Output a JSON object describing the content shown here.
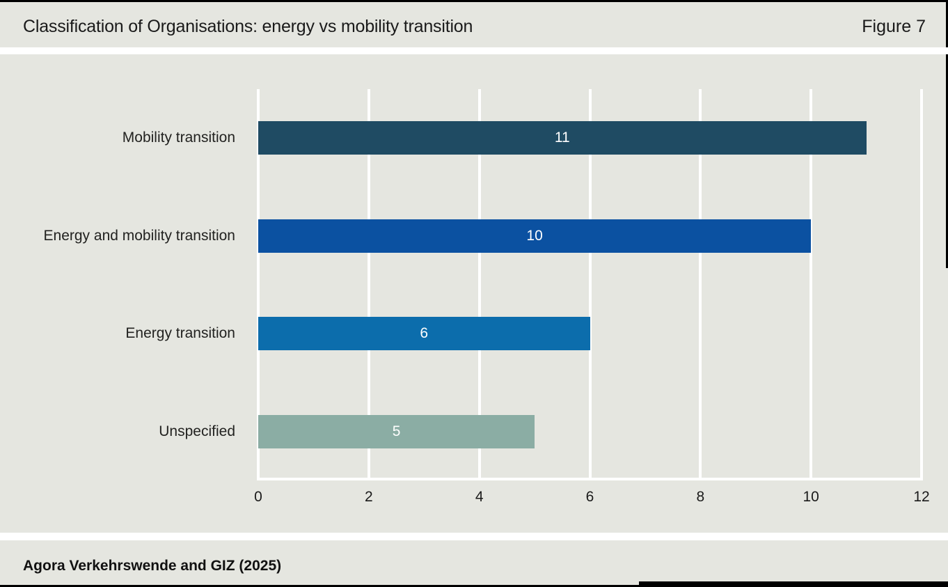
{
  "header": {
    "title": "Classification of Organisations: energy vs mobility transition",
    "figure_label": "Figure 7"
  },
  "footer": {
    "source": "Agora Verkehrswende and GIZ (2025)"
  },
  "colors": {
    "background": "#e5e6e0",
    "grid": "#ffffff",
    "text": "#1a1a1a",
    "value_label": "#ffffff",
    "border": "#000000"
  },
  "chart_data": {
    "type": "bar",
    "orientation": "horizontal",
    "title": "Classification of Organisations: energy vs mobility transition",
    "categories": [
      "Mobility transition",
      "Energy and mobility transition",
      "Energy transition",
      "Unspecified"
    ],
    "values": [
      11,
      10,
      6,
      5
    ],
    "value_labels": [
      "11",
      "10",
      "6",
      "5"
    ],
    "bar_colors": [
      "#1f4b63",
      "#0b51a1",
      "#0c6dac",
      "#8bada4"
    ],
    "xlabel": "",
    "ylabel": "",
    "xlim": [
      0,
      12
    ],
    "xticks": [
      0,
      2,
      4,
      6,
      8,
      10,
      12
    ],
    "grid": true,
    "legend": false
  }
}
